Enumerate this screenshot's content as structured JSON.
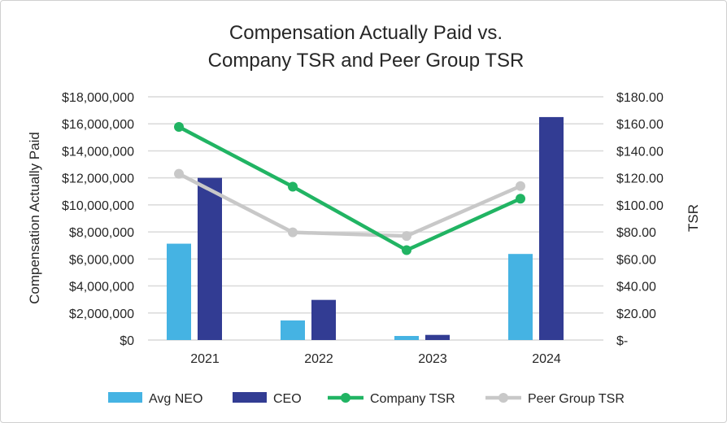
{
  "chart_data": {
    "type": "bar+line",
    "title_lines": [
      "Compensation Actually Paid vs.",
      "Company TSR and Peer Group TSR"
    ],
    "ylabel": "Compensation Actually Paid",
    "y2label": "TSR",
    "categories": [
      "2021",
      "2022",
      "2023",
      "2024"
    ],
    "ylim": [
      0,
      18000000
    ],
    "y2lim": [
      0,
      180
    ],
    "yticks": [
      "$0",
      "$2,000,000",
      "$4,000,000",
      "$6,000,000",
      "$8,000,000",
      "$10,000,000",
      "$12,000,000",
      "$14,000,000",
      "$16,000,000",
      "$18,000,000"
    ],
    "y2ticks": [
      "$-",
      "$20.00",
      "$40.00",
      "$60.00",
      "$80.00",
      "$100.00",
      "$120.00",
      "$140.00",
      "$160.00",
      "$180.00"
    ],
    "grid": true,
    "legend_position": "bottom",
    "bar_series": [
      {
        "name": "Avg NEO",
        "color": "#45b3e3",
        "values": [
          7130000,
          1450000,
          300000,
          6370000
        ]
      },
      {
        "name": "CEO",
        "color": "#323c93",
        "values": [
          12000000,
          2970000,
          380000,
          16500000
        ]
      }
    ],
    "line_series": [
      {
        "name": "Company TSR",
        "color": "#21b463",
        "axis": "right",
        "values": [
          157.7,
          113.5,
          66.5,
          104.6
        ]
      },
      {
        "name": "Peer Group TSR",
        "color": "#c8c8c8",
        "axis": "right",
        "values": [
          123.0,
          79.7,
          77.0,
          113.9
        ]
      }
    ]
  }
}
